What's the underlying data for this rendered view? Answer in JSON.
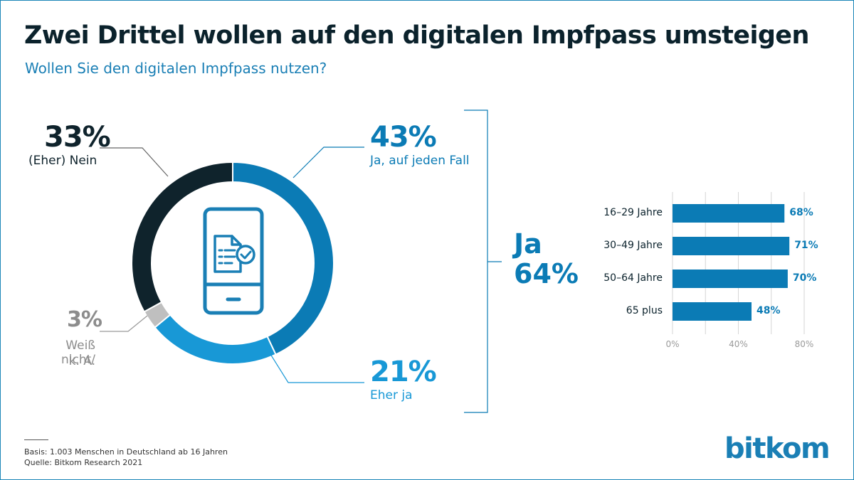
{
  "title": "Zwei Drittel wollen auf den digitalen Impfpass umsteigen",
  "subtitle": "Wollen Sie den digitalen Impfpass nutzen?",
  "donut": {
    "nein": {
      "value": "33%",
      "label": "(Eher) Nein"
    },
    "weiss_nicht": {
      "value": "3%",
      "label_line1": "Weiß nicht/",
      "label_line2": "k. A."
    },
    "ja_auf_jeden_fall": {
      "value": "43%",
      "label": "Ja, auf jeden Fall"
    },
    "eher_ja": {
      "value": "21%",
      "label": "Eher ja"
    }
  },
  "ja_total": {
    "label": "Ja",
    "value": "64%"
  },
  "footer": {
    "basis": "Basis: 1.003 Menschen  in Deutschland ab 16 Jahren",
    "quelle": "Quelle: Bitkom Research 2021"
  },
  "logo": "bitkom",
  "colors": {
    "dark": "#0f232c",
    "blue": "#0b7bb5",
    "light_blue": "#1898d6",
    "grey": "#bfbfbf",
    "icon_blue": "#1a7fb5"
  },
  "icon": "smartphone-document-check-icon",
  "chart_data": [
    {
      "type": "pie",
      "categories": [
        "Ja, auf jeden Fall",
        "Eher ja",
        "Weiß nicht/ k. A.",
        "(Eher) Nein"
      ],
      "values": [
        43,
        21,
        3,
        33
      ],
      "colors": [
        "#0b7bb5",
        "#1898d6",
        "#bfbfbf",
        "#0f232c"
      ]
    },
    {
      "type": "bar",
      "orientation": "horizontal",
      "categories": [
        "16–29 Jahre",
        "30–49 Jahre",
        "50–64 Jahre",
        "65 plus"
      ],
      "values": [
        68,
        71,
        70,
        48
      ],
      "value_labels": [
        "68%",
        "71%",
        "70%",
        "48%"
      ],
      "xlim": [
        0,
        80
      ],
      "x_ticks": [
        "0%",
        "40%",
        "80%"
      ],
      "grid": true
    }
  ]
}
